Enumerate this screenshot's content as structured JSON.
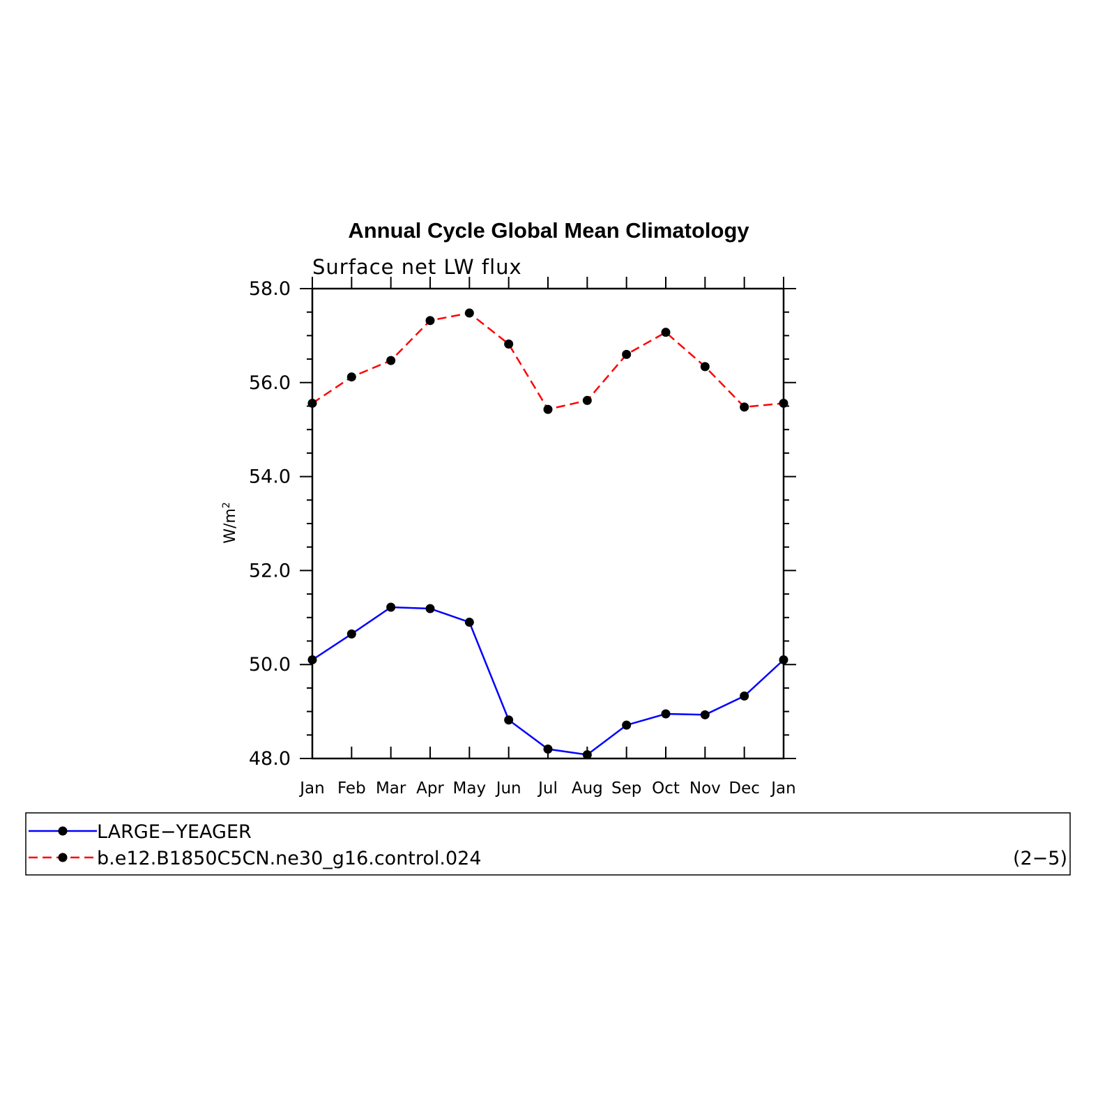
{
  "chart_data": {
    "type": "line",
    "title": "Annual Cycle Global Mean Climatology",
    "subtitle": "Surface net LW flux",
    "ylabel": "W/m",
    "ylabel_superscript": "2",
    "xlabel": "",
    "categories": [
      "Jan",
      "Feb",
      "Mar",
      "Apr",
      "May",
      "Jun",
      "Jul",
      "Aug",
      "Sep",
      "Oct",
      "Nov",
      "Dec",
      "Jan"
    ],
    "ylim": [
      48.0,
      58.0
    ],
    "yticks": [
      "48.0",
      "50.0",
      "52.0",
      "54.0",
      "56.0",
      "58.0"
    ],
    "grid": false,
    "legend_position": "bottom",
    "series": [
      {
        "name": "LARGE−YEAGER",
        "color": "#0000ff",
        "line_style": "solid",
        "marker": "filled-circle",
        "values": [
          50.1,
          50.65,
          51.22,
          51.19,
          50.9,
          48.82,
          48.2,
          48.08,
          48.71,
          48.95,
          48.93,
          49.33,
          50.1
        ]
      },
      {
        "name": "b.e12.B1850C5CN.ne30_g16.control.024",
        "color": "#ff0000",
        "line_style": "dashed",
        "marker": "filled-circle",
        "values": [
          55.56,
          56.12,
          56.47,
          57.32,
          57.48,
          56.82,
          55.43,
          55.62,
          56.6,
          57.07,
          56.34,
          55.48,
          55.56
        ]
      }
    ],
    "panel_label": "(2−5)"
  }
}
